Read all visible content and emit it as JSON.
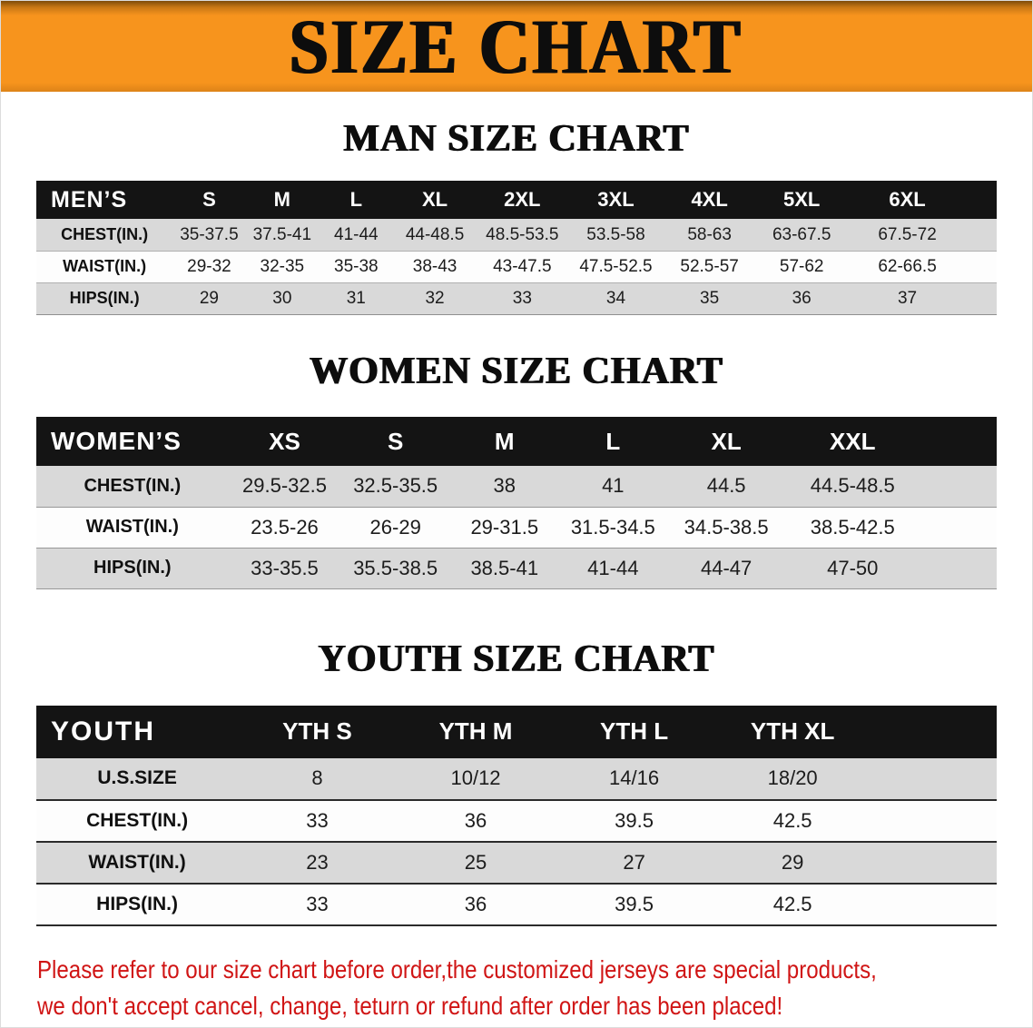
{
  "banner": {
    "title": "SIZE CHART",
    "background_color": "#f7941d"
  },
  "sections": [
    {
      "heading": "MAN SIZE CHART",
      "table": {
        "title": "MEN’S",
        "columns": [
          "S",
          "M",
          "L",
          "XL",
          "2XL",
          "3XL",
          "4XL",
          "5XL",
          "6XL"
        ],
        "rows": [
          {
            "label": "CHEST(IN.)",
            "values": [
              "35-37.5",
              "37.5-41",
              "41-44",
              "44-48.5",
              "48.5-53.5",
              "53.5-58",
              "58-63",
              "63-67.5",
              "67.5-72"
            ]
          },
          {
            "label": "WAIST(IN.)",
            "values": [
              "29-32",
              "32-35",
              "35-38",
              "38-43",
              "43-47.5",
              "47.5-52.5",
              "52.5-57",
              "57-62",
              "62-66.5"
            ]
          },
          {
            "label": "HIPS(IN.)",
            "values": [
              "29",
              "30",
              "31",
              "32",
              "33",
              "34",
              "35",
              "36",
              "37"
            ]
          }
        ]
      }
    },
    {
      "heading": "WOMEN SIZE CHART",
      "table": {
        "title": "WOMEN’S",
        "columns": [
          "XS",
          "S",
          "M",
          "L",
          "XL",
          "XXL"
        ],
        "rows": [
          {
            "label": "CHEST(IN.)",
            "values": [
              "29.5-32.5",
              "32.5-35.5",
              "38",
              "41",
              "44.5",
              "44.5-48.5"
            ]
          },
          {
            "label": "WAIST(IN.)",
            "values": [
              "23.5-26",
              "26-29",
              "29-31.5",
              "31.5-34.5",
              "34.5-38.5",
              "38.5-42.5"
            ]
          },
          {
            "label": "HIPS(IN.)",
            "values": [
              "33-35.5",
              "35.5-38.5",
              "38.5-41",
              "41-44",
              "44-47",
              "47-50"
            ]
          }
        ]
      }
    },
    {
      "heading": "YOUTH SIZE CHART",
      "table": {
        "title": "YOUTH",
        "columns": [
          "YTH S",
          "YTH M",
          "YTH L",
          "YTH XL"
        ],
        "rows": [
          {
            "label": "U.S.SIZE",
            "values": [
              "8",
              "10/12",
              "14/16",
              "18/20"
            ]
          },
          {
            "label": "CHEST(IN.)",
            "values": [
              "33",
              "36",
              "39.5",
              "42.5"
            ]
          },
          {
            "label": "WAIST(IN.)",
            "values": [
              "23",
              "25",
              "27",
              "29"
            ]
          },
          {
            "label": "HIPS(IN.)",
            "values": [
              "33",
              "36",
              "39.5",
              "42.5"
            ]
          }
        ]
      }
    }
  ],
  "disclaimer": {
    "lines": [
      "Please refer to our size chart before order,the customized jerseys are special products,",
      "we don't accept cancel, change, teturn or refund after order has been placed!"
    ]
  },
  "colors": {
    "banner_orange": "#f7941d",
    "table_header_black": "#141414",
    "stripe_gray": "#d9d9d9",
    "disclaimer_red": "#d01515"
  }
}
